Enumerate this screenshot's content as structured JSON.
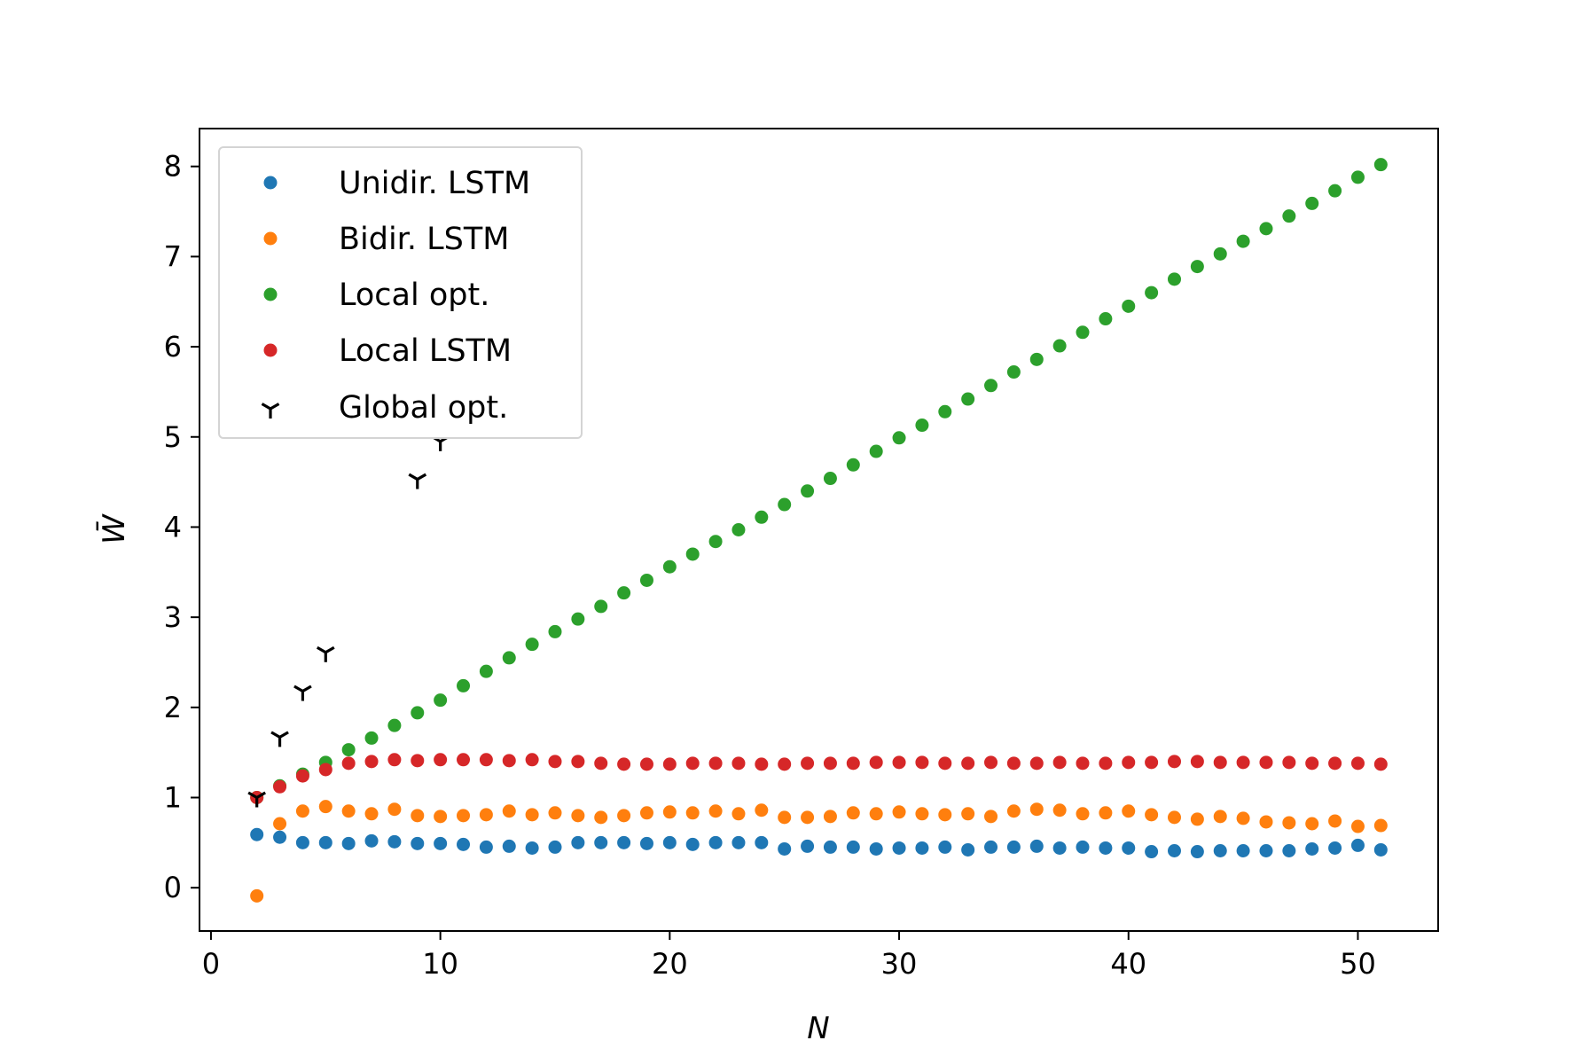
{
  "chart_data": {
    "type": "scatter",
    "xlabel": "N",
    "ylabel": "W̄",
    "xlim": [
      -0.5,
      53.5
    ],
    "ylim": [
      -0.48,
      8.42
    ],
    "xticks": [
      0,
      10,
      20,
      30,
      40,
      50
    ],
    "yticks": [
      0,
      1,
      2,
      3,
      4,
      5,
      6,
      7,
      8
    ],
    "grid": false,
    "legend_position": "upper-left",
    "series": [
      {
        "name": "Unidir. LSTM",
        "color": "#1f77b4",
        "marker": "dot",
        "x": [
          2,
          3,
          4,
          5,
          6,
          7,
          8,
          9,
          10,
          11,
          12,
          13,
          14,
          15,
          16,
          17,
          18,
          19,
          20,
          21,
          22,
          23,
          24,
          25,
          26,
          27,
          28,
          29,
          30,
          31,
          32,
          33,
          34,
          35,
          36,
          37,
          38,
          39,
          40,
          41,
          42,
          43,
          44,
          45,
          46,
          47,
          48,
          49,
          50,
          51
        ],
        "y": [
          0.59,
          0.56,
          0.5,
          0.5,
          0.49,
          0.52,
          0.51,
          0.49,
          0.49,
          0.48,
          0.45,
          0.46,
          0.44,
          0.45,
          0.5,
          0.5,
          0.5,
          0.49,
          0.5,
          0.48,
          0.5,
          0.5,
          0.5,
          0.43,
          0.46,
          0.45,
          0.45,
          0.43,
          0.44,
          0.44,
          0.45,
          0.42,
          0.45,
          0.45,
          0.46,
          0.44,
          0.45,
          0.44,
          0.44,
          0.4,
          0.41,
          0.4,
          0.41,
          0.41,
          0.41,
          0.41,
          0.43,
          0.44,
          0.47,
          0.42
        ]
      },
      {
        "name": "Bidir. LSTM",
        "color": "#ff7f0e",
        "marker": "dot",
        "x": [
          2,
          3,
          4,
          5,
          6,
          7,
          8,
          9,
          10,
          11,
          12,
          13,
          14,
          15,
          16,
          17,
          18,
          19,
          20,
          21,
          22,
          23,
          24,
          25,
          26,
          27,
          28,
          29,
          30,
          31,
          32,
          33,
          34,
          35,
          36,
          37,
          38,
          39,
          40,
          41,
          42,
          43,
          44,
          45,
          46,
          47,
          48,
          49,
          50,
          51
        ],
        "y": [
          -0.09,
          0.71,
          0.85,
          0.9,
          0.85,
          0.82,
          0.87,
          0.8,
          0.79,
          0.8,
          0.81,
          0.85,
          0.81,
          0.83,
          0.8,
          0.78,
          0.8,
          0.83,
          0.84,
          0.83,
          0.85,
          0.82,
          0.86,
          0.78,
          0.78,
          0.79,
          0.83,
          0.82,
          0.84,
          0.82,
          0.81,
          0.82,
          0.79,
          0.85,
          0.87,
          0.86,
          0.82,
          0.83,
          0.85,
          0.81,
          0.78,
          0.76,
          0.79,
          0.77,
          0.73,
          0.72,
          0.71,
          0.74,
          0.68,
          0.69
        ]
      },
      {
        "name": "Local opt.",
        "color": "#2ca02c",
        "marker": "dot",
        "x": [
          2,
          3,
          4,
          5,
          6,
          7,
          8,
          9,
          10,
          11,
          12,
          13,
          14,
          15,
          16,
          17,
          18,
          19,
          20,
          21,
          22,
          23,
          24,
          25,
          26,
          27,
          28,
          29,
          30,
          31,
          32,
          33,
          34,
          35,
          36,
          37,
          38,
          39,
          40,
          41,
          42,
          43,
          44,
          45,
          46,
          47,
          48,
          49,
          50,
          51
        ],
        "y": [
          1.0,
          1.13,
          1.26,
          1.39,
          1.53,
          1.66,
          1.8,
          1.94,
          2.08,
          2.24,
          2.4,
          2.55,
          2.7,
          2.84,
          2.98,
          3.12,
          3.27,
          3.41,
          3.56,
          3.7,
          3.84,
          3.97,
          4.11,
          4.25,
          4.4,
          4.54,
          4.69,
          4.84,
          4.99,
          5.13,
          5.28,
          5.42,
          5.57,
          5.72,
          5.86,
          6.01,
          6.16,
          6.31,
          6.45,
          6.6,
          6.75,
          6.89,
          7.03,
          7.17,
          7.31,
          7.45,
          7.59,
          7.73,
          7.88,
          8.02
        ]
      },
      {
        "name": "Local LSTM",
        "color": "#d62728",
        "marker": "dot",
        "x": [
          2,
          3,
          4,
          5,
          6,
          7,
          8,
          9,
          10,
          11,
          12,
          13,
          14,
          15,
          16,
          17,
          18,
          19,
          20,
          21,
          22,
          23,
          24,
          25,
          26,
          27,
          28,
          29,
          30,
          31,
          32,
          33,
          34,
          35,
          36,
          37,
          38,
          39,
          40,
          41,
          42,
          43,
          44,
          45,
          46,
          47,
          48,
          49,
          50,
          51
        ],
        "y": [
          1.0,
          1.12,
          1.24,
          1.31,
          1.38,
          1.4,
          1.42,
          1.41,
          1.42,
          1.42,
          1.42,
          1.41,
          1.42,
          1.4,
          1.4,
          1.38,
          1.37,
          1.37,
          1.37,
          1.38,
          1.38,
          1.38,
          1.37,
          1.37,
          1.38,
          1.38,
          1.38,
          1.39,
          1.39,
          1.39,
          1.38,
          1.38,
          1.39,
          1.38,
          1.38,
          1.39,
          1.38,
          1.38,
          1.39,
          1.39,
          1.4,
          1.4,
          1.39,
          1.39,
          1.39,
          1.39,
          1.38,
          1.38,
          1.38,
          1.37
        ]
      },
      {
        "name": "Global opt.",
        "color": "#000000",
        "marker": "tri_down",
        "x": [
          2,
          3,
          4,
          5,
          9,
          10
        ],
        "y": [
          1.0,
          1.67,
          2.18,
          2.61,
          4.53,
          4.95
        ]
      }
    ]
  }
}
